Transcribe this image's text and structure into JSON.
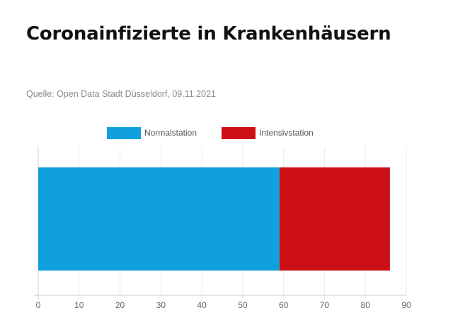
{
  "header": {
    "title": "Coronainfizierte in Krankenhäusern",
    "source": "Quelle: Open Data Stadt Düsseldorf, 09.11.2021"
  },
  "chart_data": {
    "type": "bar",
    "orientation": "horizontal",
    "stacked": true,
    "categories": [
      ""
    ],
    "series": [
      {
        "name": "Normalstation",
        "values": [
          59
        ],
        "color": "#129fdd"
      },
      {
        "name": "Intensivstation",
        "values": [
          27
        ],
        "color": "#cc1016"
      }
    ],
    "xlim": [
      0,
      90
    ],
    "xticks": [
      0,
      10,
      20,
      30,
      40,
      50,
      60,
      70,
      80,
      90
    ],
    "grid": true,
    "legend_position": "top-center"
  }
}
